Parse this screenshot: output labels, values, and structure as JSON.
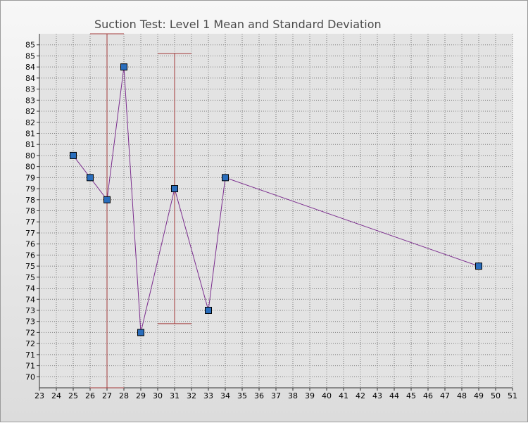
{
  "chart_data": {
    "type": "line",
    "title": "Suction Test: Level 1 Mean and Standard Deviation",
    "xlim": [
      23,
      51
    ],
    "ylim": [
      69.5,
      85.5
    ],
    "x_ticks": [
      23,
      24,
      25,
      26,
      27,
      28,
      29,
      30,
      31,
      32,
      33,
      34,
      35,
      36,
      37,
      38,
      39,
      40,
      41,
      42,
      43,
      44,
      45,
      46,
      47,
      48,
      49,
      50,
      51
    ],
    "y_ticks": [
      70,
      70.5,
      71,
      71.5,
      72,
      72.5,
      73,
      73.5,
      74,
      74.5,
      75,
      75.5,
      76,
      76.5,
      77,
      77.5,
      78,
      78.5,
      79,
      79.5,
      80,
      80.5,
      81,
      81.5,
      82,
      82.5,
      83,
      83.5,
      84,
      84.5,
      85
    ],
    "y_tick_labels": [
      "70",
      "71",
      "71",
      "72",
      "72",
      "73",
      "73",
      "74",
      "74",
      "75",
      "75",
      "76",
      "76",
      "77",
      "77",
      "78",
      "78",
      "79",
      "79",
      "80",
      "80",
      "81",
      "81",
      "82",
      "82",
      "83",
      "83",
      "84",
      "84",
      "85",
      "85"
    ],
    "grid": true,
    "series": [
      {
        "x": [
          25,
          26,
          27,
          28,
          29,
          31,
          33,
          34,
          49
        ],
        "y": [
          80,
          79,
          78,
          84,
          72,
          78.5,
          73,
          79,
          75
        ],
        "color": "#7b2d8e",
        "marker_color": "#2a6ebd"
      }
    ],
    "error_bars": [
      {
        "x": 27,
        "low": 69.5,
        "high": 85.5,
        "color": "#a33a3a"
      },
      {
        "x": 31,
        "low": 72.4,
        "high": 84.6,
        "color": "#a33a3a"
      }
    ]
  }
}
